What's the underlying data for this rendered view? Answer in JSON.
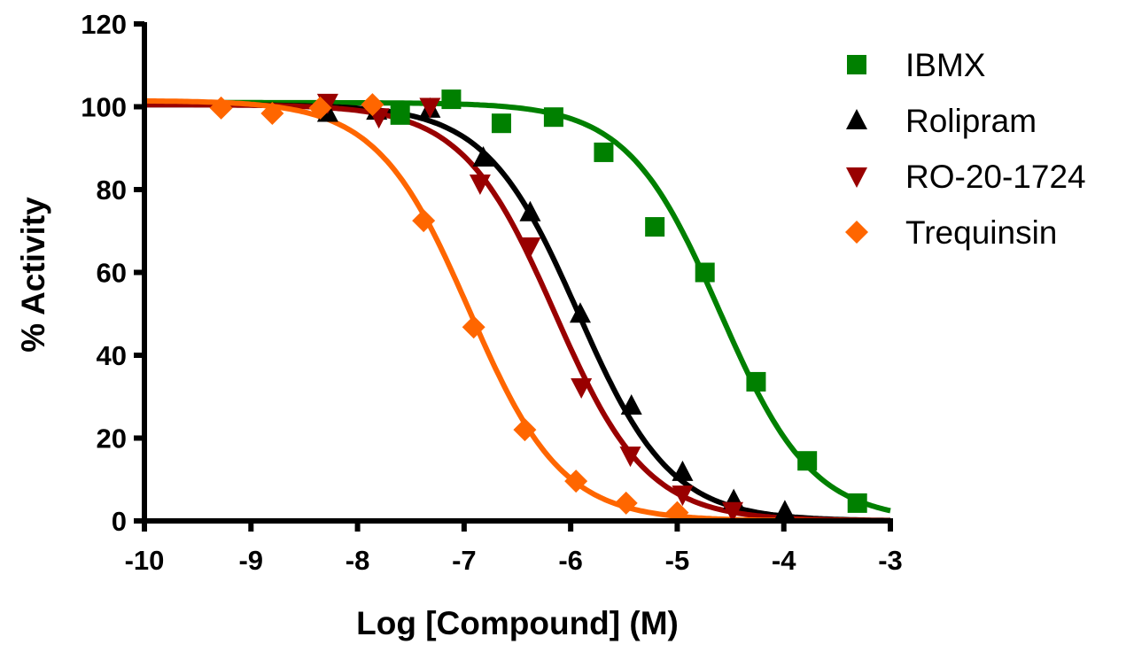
{
  "chart_data": {
    "type": "scatter",
    "title": "",
    "xlabel": "Log [Compound] (M)",
    "ylabel": "% Activity",
    "xlim": [
      -10,
      -3
    ],
    "ylim": [
      0,
      120
    ],
    "xticks": [
      "-10",
      "-9",
      "-8",
      "-7",
      "-6",
      "-5",
      "-4",
      "-3"
    ],
    "yticks": [
      "0",
      "20",
      "40",
      "60",
      "80",
      "100",
      "120"
    ],
    "grid": false,
    "legend_position": "top-right",
    "series": [
      {
        "name": "IBMX",
        "color": "#008000",
        "marker": "square",
        "fit": {
          "top": 101,
          "bottom": 0,
          "log_ic50": -4.6,
          "hill": 1
        },
        "x": [
          -7.6,
          -7.12,
          -6.65,
          -6.16,
          -5.69,
          -5.21,
          -4.74,
          -4.26,
          -3.78,
          -3.31
        ],
        "y": [
          98,
          101.8,
          96,
          97.5,
          89,
          71,
          60,
          33.6,
          14.5,
          4.3
        ]
      },
      {
        "name": "Rolipram",
        "color": "#000000",
        "marker": "triangle-up",
        "fit": {
          "top": 100.5,
          "bottom": 0,
          "log_ic50": -5.93,
          "hill": 1
        },
        "x": [
          -8.28,
          -7.82,
          -7.32,
          -6.82,
          -6.38,
          -5.91,
          -5.43,
          -4.95,
          -4.47,
          -3.99
        ],
        "y": [
          98.5,
          99,
          99.5,
          87.7,
          74.5,
          50,
          27.8,
          11.8,
          5,
          2.3
        ]
      },
      {
        "name": "RO-20-1724",
        "color": "#990000",
        "marker": "triangle-down",
        "fit": {
          "top": 100.5,
          "bottom": 0,
          "log_ic50": -6.15,
          "hill": 1
        },
        "x": [
          -8.28,
          -7.8,
          -7.32,
          -6.85,
          -6.38,
          -5.9,
          -5.44,
          -4.95,
          -4.48
        ],
        "y": [
          101,
          97.5,
          100,
          81.5,
          66.3,
          32.3,
          15.8,
          6.4,
          2.4
        ]
      },
      {
        "name": "Trequinsin",
        "color": "#ff6600",
        "marker": "diamond",
        "fit": {
          "top": 101.5,
          "bottom": 0,
          "log_ic50": -6.95,
          "hill": 1
        },
        "x": [
          -9.28,
          -8.8,
          -8.35,
          -7.86,
          -7.38,
          -6.91,
          -6.43,
          -5.95,
          -5.48,
          -5.0
        ],
        "y": [
          99.7,
          98.4,
          99.7,
          100.5,
          72.5,
          46.8,
          22,
          9.6,
          4.3,
          2
        ]
      }
    ]
  }
}
